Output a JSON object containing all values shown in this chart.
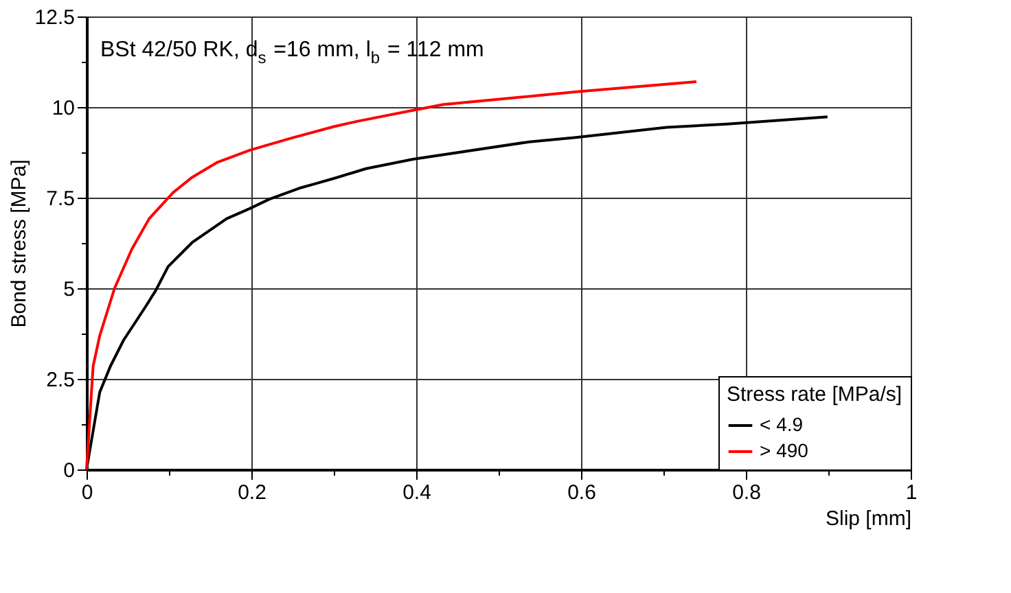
{
  "chart_data": {
    "type": "line",
    "xlabel": "Slip [mm]",
    "ylabel": "Bond stress [MPa]",
    "legend_title": "Stress rate [MPa/s]",
    "annotations": [
      "BSt 42/50 RK, d$_{s}$ =16 mm, l$_{b}$ = 112 mm"
    ],
    "xlim": [
      0,
      1
    ],
    "xticks": [
      0,
      {
        "value": 0.1,
        "label": null
      },
      0.2,
      {
        "value": 0.3,
        "label": null
      },
      0.4,
      {
        "value": 0.5,
        "label": null
      },
      0.6,
      {
        "value": 0.7,
        "label": null
      },
      0.8,
      {
        "value": 0.9,
        "label": null
      },
      1
    ],
    "ylim": [
      0,
      12.5
    ],
    "yticks": [
      0,
      {
        "value": 1.25,
        "label": null
      },
      2.5,
      {
        "value": 3.75,
        "label": null
      },
      5,
      {
        "value": 6.25,
        "label": null
      },
      7.5,
      {
        "value": 8.75,
        "label": null
      },
      10,
      {
        "value": 11.25,
        "label": null
      },
      12.5
    ],
    "grid": true,
    "legend": "bottom right",
    "marker": "none",
    "line_style": "solid",
    "series": [
      {
        "name": "< 4.9",
        "color": "#000000",
        "x": [
          0,
          0.016,
          0.029,
          0.045,
          0.071,
          0.084,
          0.099,
          0.128,
          0.17,
          0.198,
          0.222,
          0.258,
          0.277,
          0.3,
          0.339,
          0.396,
          0.537,
          0.594,
          0.704,
          0.777,
          0.899
        ],
        "values": [
          0,
          2.13,
          2.85,
          3.57,
          4.47,
          4.94,
          5.6,
          6.26,
          6.92,
          7.2,
          7.46,
          7.76,
          7.88,
          8.03,
          8.3,
          8.56,
          9.04,
          9.16,
          9.44,
          9.53,
          9.73
        ]
      },
      {
        "name": "> 490",
        "color": "#ff0000",
        "x": [
          0,
          0.008,
          0.016,
          0.034,
          0.055,
          0.076,
          0.105,
          0.128,
          0.159,
          0.198,
          0.248,
          0.3,
          0.329,
          0.396,
          0.433,
          0.594,
          0.74
        ],
        "values": [
          0,
          2.85,
          3.69,
          5.0,
          6.08,
          6.92,
          7.64,
          8.06,
          8.48,
          8.81,
          9.14,
          9.46,
          9.61,
          9.91,
          10.07,
          10.42,
          10.7
        ]
      }
    ]
  }
}
